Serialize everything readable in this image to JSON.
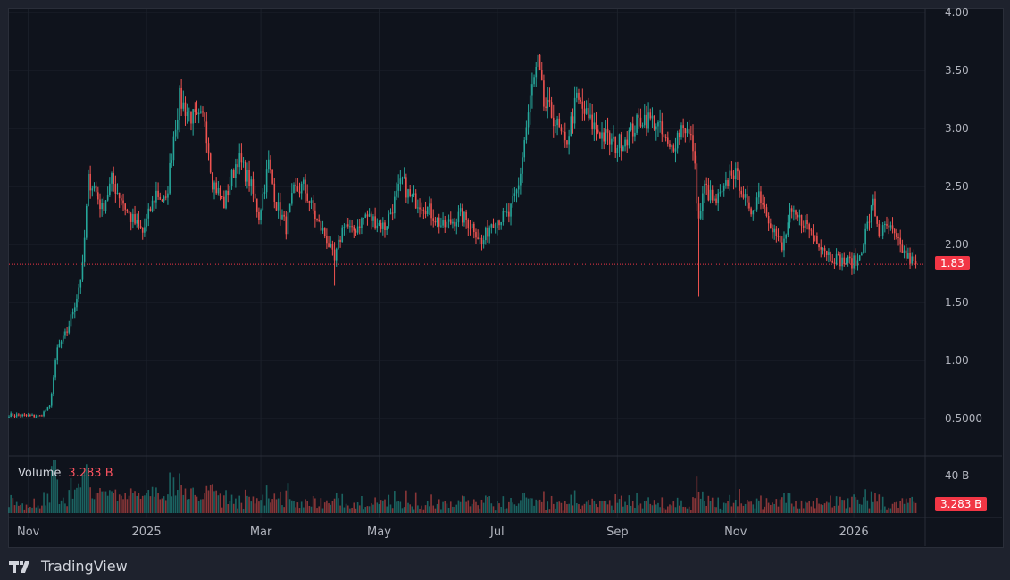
{
  "chart_data": {
    "type": "candlestick",
    "start_date": "2024-10-22",
    "anchor_closes": [
      [
        0,
        0.53
      ],
      [
        16,
        0.52
      ],
      [
        21,
        0.6
      ],
      [
        25,
        1.1
      ],
      [
        30,
        1.25
      ],
      [
        35,
        1.55
      ],
      [
        38,
        1.8
      ],
      [
        41,
        2.55
      ],
      [
        44,
        2.5
      ],
      [
        48,
        2.3
      ],
      [
        53,
        2.55
      ],
      [
        58,
        2.4
      ],
      [
        62,
        2.25
      ],
      [
        69,
        2.1
      ],
      [
        76,
        2.45
      ],
      [
        81,
        2.35
      ],
      [
        85,
        2.95
      ],
      [
        88,
        3.25
      ],
      [
        92,
        3.15
      ],
      [
        97,
        3.05
      ],
      [
        101,
        3.1
      ],
      [
        105,
        2.55
      ],
      [
        111,
        2.35
      ],
      [
        118,
        2.75
      ],
      [
        124,
        2.55
      ],
      [
        129,
        2.25
      ],
      [
        134,
        2.7
      ],
      [
        138,
        2.35
      ],
      [
        143,
        2.15
      ],
      [
        147,
        2.45
      ],
      [
        152,
        2.5
      ],
      [
        159,
        2.2
      ],
      [
        164,
        2.05
      ],
      [
        168,
        1.85
      ],
      [
        173,
        2.2
      ],
      [
        177,
        2.1
      ],
      [
        184,
        2.25
      ],
      [
        194,
        2.15
      ],
      [
        203,
        2.55
      ],
      [
        207,
        2.4
      ],
      [
        214,
        2.35
      ],
      [
        224,
        2.15
      ],
      [
        233,
        2.25
      ],
      [
        240,
        2.15
      ],
      [
        244,
        2.0
      ],
      [
        249,
        2.2
      ],
      [
        258,
        2.25
      ],
      [
        263,
        2.5
      ],
      [
        266,
        2.9
      ],
      [
        270,
        3.35
      ],
      [
        273,
        3.55
      ],
      [
        276,
        3.2
      ],
      [
        281,
        3.1
      ],
      [
        287,
        2.85
      ],
      [
        293,
        3.25
      ],
      [
        300,
        3.05
      ],
      [
        306,
        2.95
      ],
      [
        313,
        2.85
      ],
      [
        320,
        2.95
      ],
      [
        327,
        3.1
      ],
      [
        334,
        3.05
      ],
      [
        341,
        2.8
      ],
      [
        348,
        3.05
      ],
      [
        353,
        2.85
      ],
      [
        356,
        2.2
      ],
      [
        359,
        2.5
      ],
      [
        364,
        2.35
      ],
      [
        369,
        2.45
      ],
      [
        373,
        2.65
      ],
      [
        378,
        2.5
      ],
      [
        382,
        2.25
      ],
      [
        387,
        2.45
      ],
      [
        393,
        2.2
      ],
      [
        399,
        1.95
      ],
      [
        403,
        2.25
      ],
      [
        410,
        2.2
      ],
      [
        417,
        2.05
      ],
      [
        424,
        1.9
      ],
      [
        431,
        1.85
      ],
      [
        438,
        1.85
      ],
      [
        442,
        2.1
      ],
      [
        446,
        2.35
      ],
      [
        449,
        2.1
      ],
      [
        454,
        2.15
      ],
      [
        459,
        2.0
      ],
      [
        463,
        1.9
      ],
      [
        468,
        1.83
      ]
    ],
    "spike_lows": [
      [
        356,
        1.55
      ],
      [
        168,
        1.65
      ]
    ],
    "y_ticks": [
      "4.00",
      "3.50",
      "3.00",
      "2.50",
      "2.00",
      "1.50",
      "1.00",
      "0.5000"
    ],
    "y_tick_values": [
      4.0,
      3.5,
      3.0,
      2.5,
      2.0,
      1.5,
      1.0,
      0.5
    ],
    "ylim": [
      0.25,
      4.0
    ],
    "x_ticks": [
      {
        "label": "Nov",
        "day": 10
      },
      {
        "label": "2025",
        "day": 71
      },
      {
        "label": "Mar",
        "day": 130
      },
      {
        "label": "May",
        "day": 191
      },
      {
        "label": "Jul",
        "day": 252
      },
      {
        "label": "Sep",
        "day": 314
      },
      {
        "label": "Nov",
        "day": 375
      },
      {
        "label": "2026",
        "day": 436
      }
    ],
    "last_price": 1.83,
    "last_price_label": "1.83",
    "volume": {
      "label": "Volume",
      "value": "3.283 B",
      "axis_tick": "40 B"
    },
    "colors": {
      "up": "#26a69a",
      "down": "#ef5350",
      "grid": "#1c212b",
      "badge": "#f23645"
    }
  },
  "brand": "TradingView"
}
